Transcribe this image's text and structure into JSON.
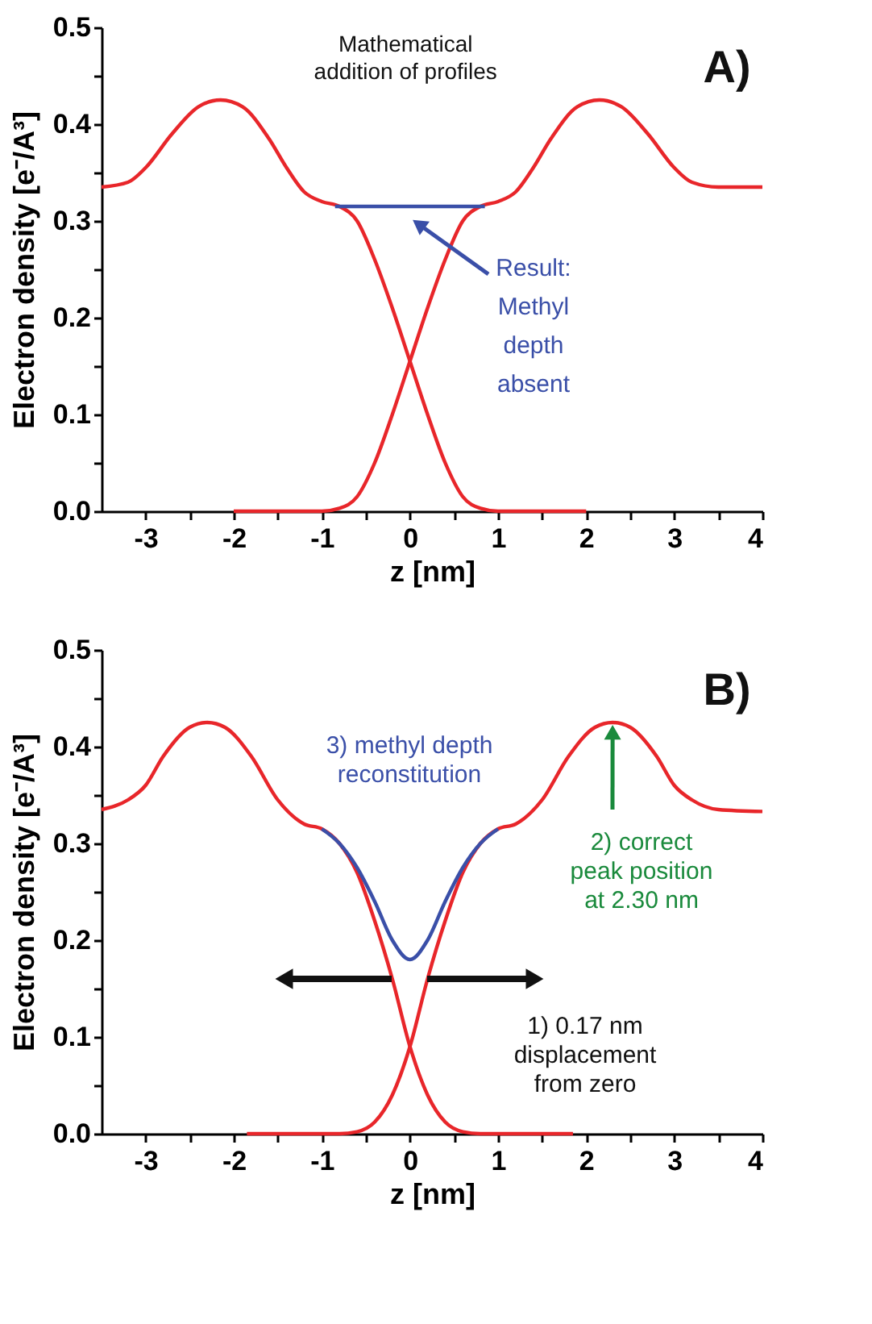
{
  "chart_data": [
    {
      "type": "line",
      "xlabel": "z [nm]",
      "ylabel": "Electron density [e⁻/A³]",
      "xlim": [
        -3.5,
        4
      ],
      "ylim": [
        0,
        0.5
      ],
      "xticks": [
        -3,
        {
          "value": -2.5,
          "label": null
        },
        -2,
        {
          "value": -1.5,
          "label": null
        },
        -1,
        {
          "value": -0.5,
          "label": null
        },
        0,
        {
          "value": 0.5,
          "label": null
        },
        1,
        {
          "value": 1.5,
          "label": null
        },
        2,
        {
          "value": 2.5,
          "label": null
        },
        3,
        {
          "value": 3.5,
          "label": null
        },
        4
      ],
      "yticks": [
        {
          "value": 0,
          "label": "0.0"
        },
        {
          "value": 0.05,
          "label": null
        },
        0.1,
        {
          "value": 0.15,
          "label": null
        },
        0.2,
        {
          "value": 0.25,
          "label": null
        },
        0.3,
        {
          "value": 0.35,
          "label": null
        },
        0.4,
        {
          "value": 0.45,
          "label": null
        },
        0.5
      ],
      "grid": false,
      "line_style": "solid",
      "marker": "none",
      "series": [
        {
          "color": "#e8262a",
          "x": [
            -3.5,
            -3.2,
            -3.0,
            -2.7,
            -2.4,
            -2.15,
            -1.9,
            -1.6,
            -1.4,
            -1.2,
            -1.0,
            -0.8,
            -0.6,
            -0.4,
            -0.2,
            0,
            0.2,
            0.4,
            0.6,
            0.8,
            1.0,
            2.0
          ],
          "values": [
            0.335,
            0.34,
            0.355,
            0.39,
            0.418,
            0.425,
            0.418,
            0.385,
            0.355,
            0.33,
            0.32,
            0.315,
            0.3,
            0.26,
            0.21,
            0.155,
            0.1,
            0.05,
            0.015,
            0.003,
            0.0,
            0.0
          ]
        },
        {
          "color": "#e8262a",
          "x": [
            -2.0,
            -1.0,
            -0.8,
            -0.6,
            -0.4,
            -0.2,
            0,
            0.2,
            0.4,
            0.6,
            0.8,
            1.0,
            1.2,
            1.4,
            1.6,
            1.9,
            2.15,
            2.4,
            2.7,
            3.0,
            3.2,
            3.5,
            4.0
          ],
          "values": [
            0.0,
            0.0,
            0.003,
            0.015,
            0.05,
            0.1,
            0.155,
            0.21,
            0.26,
            0.3,
            0.315,
            0.32,
            0.33,
            0.355,
            0.385,
            0.418,
            0.425,
            0.418,
            0.39,
            0.355,
            0.34,
            0.335,
            0.335
          ]
        },
        {
          "color": "#3a4fa8",
          "x": [
            -0.85,
            0.85
          ],
          "values": [
            0.315,
            0.315
          ]
        }
      ],
      "annotations": [
        "Mathematical\naddition of profiles",
        "A)",
        "Result:\nMethyl\ndepth\nabsent"
      ]
    },
    {
      "type": "line",
      "xlabel": "z [nm]",
      "ylabel": "Electron density [e⁻/A³]",
      "xlim": [
        -3.5,
        4
      ],
      "ylim": [
        0,
        0.5
      ],
      "xticks": [
        -3,
        {
          "value": -2.5,
          "label": null
        },
        -2,
        {
          "value": -1.5,
          "label": null
        },
        -1,
        {
          "value": -0.5,
          "label": null
        },
        0,
        {
          "value": 0.5,
          "label": null
        },
        1,
        {
          "value": 1.5,
          "label": null
        },
        2,
        {
          "value": 2.5,
          "label": null
        },
        3,
        {
          "value": 3.5,
          "label": null
        },
        4
      ],
      "yticks": [
        {
          "value": 0,
          "label": "0.0"
        },
        {
          "value": 0.05,
          "label": null
        },
        0.1,
        {
          "value": 0.15,
          "label": null
        },
        0.2,
        {
          "value": 0.25,
          "label": null
        },
        0.3,
        {
          "value": 0.35,
          "label": null
        },
        0.4,
        {
          "value": 0.45,
          "label": null
        },
        0.5
      ],
      "grid": false,
      "line_style": "solid",
      "marker": "none",
      "series": [
        {
          "color": "#e8262a",
          "x": [
            -3.5,
            -3.2,
            -3.0,
            -2.8,
            -2.5,
            -2.3,
            -2.1,
            -1.8,
            -1.5,
            -1.2,
            -1.0,
            -0.8,
            -0.6,
            -0.4,
            -0.2,
            0,
            0.2,
            0.4,
            0.6,
            0.8,
            1.85
          ],
          "values": [
            0.335,
            0.345,
            0.36,
            0.39,
            0.42,
            0.425,
            0.42,
            0.39,
            0.345,
            0.32,
            0.315,
            0.3,
            0.27,
            0.22,
            0.16,
            0.09,
            0.04,
            0.012,
            0.002,
            0.0,
            0.0
          ]
        },
        {
          "color": "#e8262a",
          "x": [
            -1.85,
            -0.8,
            -0.6,
            -0.4,
            -0.2,
            0,
            0.2,
            0.4,
            0.6,
            0.8,
            1.0,
            1.2,
            1.5,
            1.8,
            2.1,
            2.3,
            2.5,
            2.8,
            3.0,
            3.2,
            3.5,
            4.0
          ],
          "values": [
            0.0,
            0.0,
            0.002,
            0.012,
            0.04,
            0.09,
            0.16,
            0.22,
            0.27,
            0.3,
            0.315,
            0.32,
            0.345,
            0.39,
            0.42,
            0.425,
            0.42,
            0.39,
            0.36,
            0.345,
            0.335,
            0.333
          ]
        },
        {
          "color": "#3a4fa8",
          "x": [
            -1.0,
            -0.8,
            -0.6,
            -0.4,
            -0.2,
            0,
            0.2,
            0.4,
            0.6,
            0.8,
            1.0
          ],
          "values": [
            0.315,
            0.3,
            0.275,
            0.24,
            0.2,
            0.18,
            0.2,
            0.24,
            0.275,
            0.3,
            0.315
          ]
        }
      ],
      "annotations": [
        "B)",
        "3) methyl depth\nreconstitution",
        {
          "text": "2) correct\npeak position\nat 2.30 nm",
          "x": 2.3,
          "y": 0.42
        },
        "1) 0.17 nm\ndisplacement\nfrom zero"
      ]
    }
  ]
}
